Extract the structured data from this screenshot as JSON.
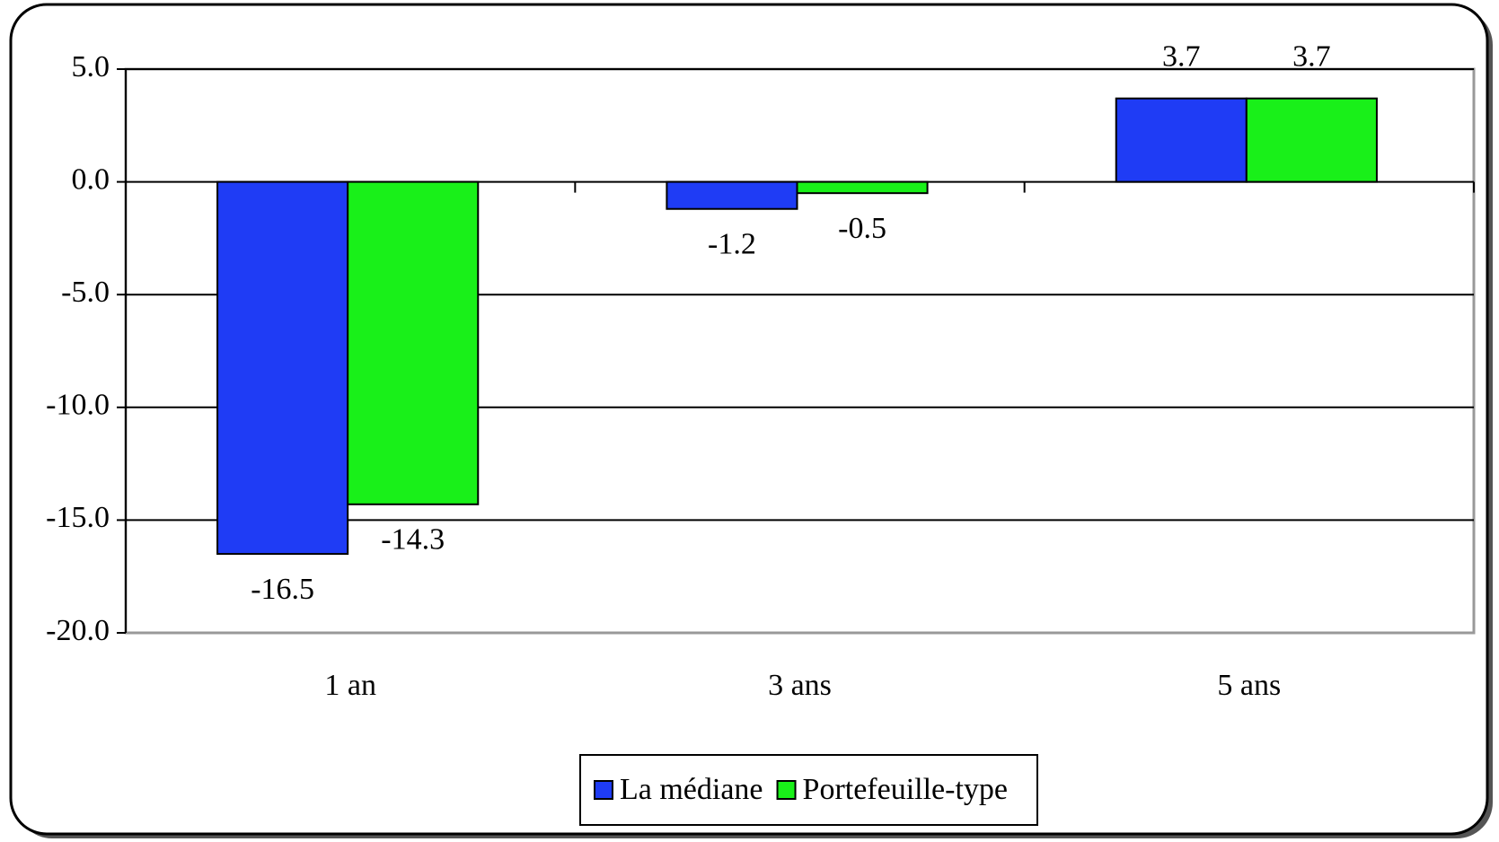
{
  "chart_data": {
    "type": "bar",
    "categories": [
      "1 an",
      "3 ans",
      "5 ans"
    ],
    "series": [
      {
        "name": "La médiane",
        "color": "#1f3cf5",
        "values": [
          -16.5,
          -1.2,
          3.7
        ]
      },
      {
        "name": "Portefeuille-type",
        "color": "#19f019",
        "values": [
          -14.3,
          -0.5,
          3.7
        ]
      }
    ],
    "ylim": [
      -20,
      5
    ],
    "yticks": [
      {
        "value": -20,
        "label": "-20.0"
      },
      {
        "value": -15,
        "label": "-15.0"
      },
      {
        "value": -10,
        "label": "-10.0"
      },
      {
        "value": -5,
        "label": "-5.0"
      },
      {
        "value": 0,
        "label": "0.0"
      },
      {
        "value": 5,
        "label": "5.0"
      }
    ],
    "grid": true,
    "legend": "bottom"
  }
}
